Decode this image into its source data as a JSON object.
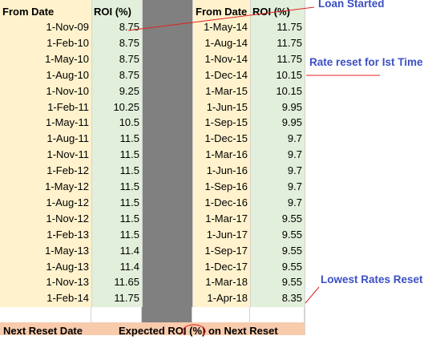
{
  "headers": {
    "from_date_1": "From Date",
    "roi_1": "ROI (%)",
    "from_date_2": "From Date",
    "roi_2": "ROI (%)"
  },
  "left_table": [
    {
      "date": "1-Nov-09",
      "roi": "8.75"
    },
    {
      "date": "1-Feb-10",
      "roi": "8.75"
    },
    {
      "date": "1-May-10",
      "roi": "8.75"
    },
    {
      "date": "1-Aug-10",
      "roi": "8.75"
    },
    {
      "date": "1-Nov-10",
      "roi": "9.25"
    },
    {
      "date": "1-Feb-11",
      "roi": "10.25"
    },
    {
      "date": "1-May-11",
      "roi": "10.5"
    },
    {
      "date": "1-Aug-11",
      "roi": "11.5"
    },
    {
      "date": "1-Nov-11",
      "roi": "11.5"
    },
    {
      "date": "1-Feb-12",
      "roi": "11.5"
    },
    {
      "date": "1-May-12",
      "roi": "11.5"
    },
    {
      "date": "1-Aug-12",
      "roi": "11.5"
    },
    {
      "date": "1-Nov-12",
      "roi": "11.5"
    },
    {
      "date": "1-Feb-13",
      "roi": "11.5"
    },
    {
      "date": "1-May-13",
      "roi": "11.4"
    },
    {
      "date": "1-Aug-13",
      "roi": "11.4"
    },
    {
      "date": "1-Nov-13",
      "roi": "11.65"
    },
    {
      "date": "1-Feb-14",
      "roi": "11.75"
    }
  ],
  "right_table": [
    {
      "date": "1-May-14",
      "roi": "11.75"
    },
    {
      "date": "1-Aug-14",
      "roi": "11.75"
    },
    {
      "date": "1-Nov-14",
      "roi": "11.75"
    },
    {
      "date": "1-Dec-14",
      "roi": "10.15"
    },
    {
      "date": "1-Mar-15",
      "roi": "10.15"
    },
    {
      "date": "1-Jun-15",
      "roi": "9.95"
    },
    {
      "date": "1-Sep-15",
      "roi": "9.95"
    },
    {
      "date": "1-Dec-15",
      "roi": "9.7"
    },
    {
      "date": "1-Mar-16",
      "roi": "9.7"
    },
    {
      "date": "1-Jun-16",
      "roi": "9.7"
    },
    {
      "date": "1-Sep-16",
      "roi": "9.7"
    },
    {
      "date": "1-Dec-16",
      "roi": "9.7"
    },
    {
      "date": "1-Mar-17",
      "roi": "9.55"
    },
    {
      "date": "1-Jun-17",
      "roi": "9.55"
    },
    {
      "date": "1-Sep-17",
      "roi": "9.55"
    },
    {
      "date": "1-Dec-17",
      "roi": "9.55"
    },
    {
      "date": "1-Mar-18",
      "roi": "9.55"
    },
    {
      "date": "1-Apr-18",
      "roi": "8.35"
    }
  ],
  "footer": {
    "next_reset_date": "Next Reset Date",
    "expected_roi": "Expected ROI (%) on Next Reset"
  },
  "annotations": {
    "loan_started": "Loan Started",
    "rate_reset_first": "Rate reset for Ist Time",
    "lowest_rates_reset": "Lowest Rates Reset"
  },
  "colors": {
    "date_column": "#fff2cc",
    "roi_column": "#e2efda",
    "spacer_column": "#808080",
    "footer": "#f8cbad",
    "annotation_text": "#3b4fc4",
    "annotation_line": "#e02020"
  }
}
